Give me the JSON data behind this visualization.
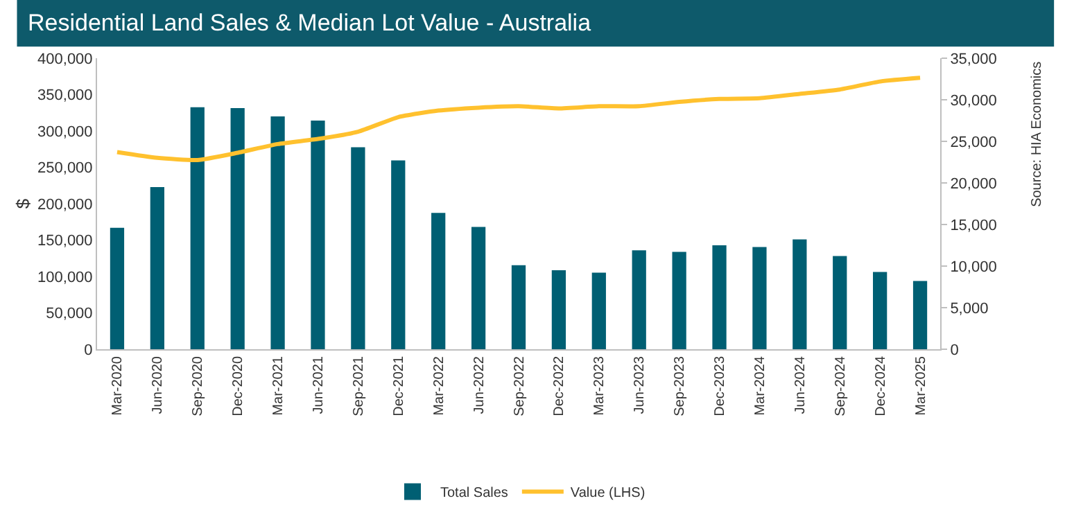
{
  "chart_data": {
    "type": "bar",
    "title": "Residential Land Sales & Median Lot Value - Australia",
    "ylabel": "$",
    "categories": [
      "Mar-2020",
      "Jun-2020",
      "Sep-2020",
      "Dec-2020",
      "Mar-2021",
      "Jun-2021",
      "Sep-2021",
      "Dec-2021",
      "Mar-2022",
      "Jun-2022",
      "Sep-2022",
      "Dec-2022",
      "Mar-2023",
      "Jun-2023",
      "Sep-2023",
      "Dec-2023",
      "Mar-2024",
      "Jun-2024",
      "Sep-2024",
      "Dec-2024",
      "Mar-2025"
    ],
    "series": [
      {
        "name": "Total Sales",
        "axis": "y2",
        "color": "#005f73",
        "values": [
          14600,
          19500,
          29100,
          29000,
          28000,
          27500,
          24300,
          22700,
          16400,
          14700,
          10100,
          9500,
          9200,
          11900,
          11700,
          12500,
          12300,
          13200,
          11200,
          9300,
          8200
        ]
      },
      {
        "name": "Value (LHS)",
        "type": "line",
        "color": "#ffc12e",
        "values": [
          271000,
          263000,
          260000,
          270000,
          282000,
          289000,
          299000,
          319000,
          328000,
          332000,
          334000,
          331000,
          334000,
          334000,
          340000,
          344000,
          345000,
          351000,
          357000,
          368000,
          373000
        ]
      }
    ],
    "ylim": [
      0,
      400000
    ],
    "yticks": [
      {
        "value": 0,
        "label": "0"
      },
      {
        "value": 50000,
        "label": "50,000"
      },
      {
        "value": 100000,
        "label": "100,000"
      },
      {
        "value": 150000,
        "label": "150,000"
      },
      {
        "value": 200000,
        "label": "200,000"
      },
      {
        "value": 250000,
        "label": "250,000"
      },
      {
        "value": 300000,
        "label": "300,000"
      },
      {
        "value": 350000,
        "label": "350,000"
      },
      {
        "value": 400000,
        "label": "400,000"
      }
    ],
    "y2lim": [
      0,
      35000
    ],
    "y2ticks": [
      {
        "value": 0,
        "label": "0"
      },
      {
        "value": 5000,
        "label": "5,000"
      },
      {
        "value": 10000,
        "label": "10,000"
      },
      {
        "value": 15000,
        "label": "15,000"
      },
      {
        "value": 20000,
        "label": "20,000"
      },
      {
        "value": 25000,
        "label": "25,000"
      },
      {
        "value": 30000,
        "label": "30,000"
      },
      {
        "value": 35000,
        "label": "35,000"
      }
    ],
    "annotations": [
      "Source: HIA Economics"
    ],
    "legend": "bottom"
  }
}
